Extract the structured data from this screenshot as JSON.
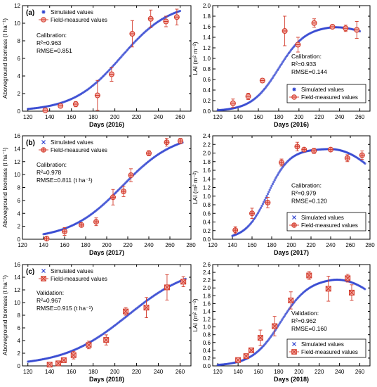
{
  "chart_data": [
    {
      "type": "scatter",
      "panel_label": "(a)",
      "xlabel": "Days (2016)",
      "ylabel": "Aboveground biomass (t ha⁻¹)",
      "xlim": [
        115,
        270
      ],
      "ylim": [
        0,
        12
      ],
      "xticks": [
        120,
        140,
        160,
        180,
        200,
        220,
        240,
        260
      ],
      "yticks": [
        0,
        2,
        4,
        6,
        8,
        10,
        12
      ],
      "legend": {
        "placement": "top-left",
        "entries": [
          "Simulated values",
          "Field-measured values"
        ]
      },
      "marker": "circle",
      "annotation": [
        "Calibration:",
        "R²=0.963",
        "RMSE=0.851"
      ],
      "sim": {
        "x0": 120,
        "x1": 260,
        "kind": "logistic",
        "K": 12.4,
        "r": 0.045,
        "t0": 206,
        "base": 0
      },
      "measured": [
        {
          "x": 136,
          "y": 0.1,
          "err": 0.1
        },
        {
          "x": 150,
          "y": 0.6,
          "err": 0.2
        },
        {
          "x": 164,
          "y": 0.8,
          "err": 0.3
        },
        {
          "x": 184,
          "y": 1.8,
          "err": 1.7
        },
        {
          "x": 197,
          "y": 4.2,
          "err": 0.8
        },
        {
          "x": 216,
          "y": 8.8,
          "err": 1.5
        },
        {
          "x": 233,
          "y": 10.5,
          "err": 1.0
        },
        {
          "x": 247,
          "y": 10.2,
          "err": 0.6
        },
        {
          "x": 257,
          "y": 10.7,
          "err": 0.9
        }
      ]
    },
    {
      "type": "scatter",
      "panel_label": "",
      "xlabel": "Days (2016)",
      "ylabel": "LAI (m² m⁻²)",
      "xlim": [
        115,
        270
      ],
      "ylim": [
        0,
        2.0
      ],
      "xticks": [
        120,
        140,
        160,
        180,
        200,
        220,
        240,
        260
      ],
      "yticks": [
        0.0,
        0.2,
        0.4,
        0.6,
        0.8,
        1.0,
        1.2,
        1.4,
        1.6,
        1.8,
        2.0
      ],
      "legend": {
        "placement": "bottom-right",
        "entries": [
          "Simulated values",
          "Field-measured values"
        ]
      },
      "marker": "circle",
      "annotation": [
        "Calibration:",
        "R²=0.933",
        "RMSE=0.144"
      ],
      "sim": {
        "x0": 120,
        "x1": 260,
        "kind": "lai",
        "K": 1.62,
        "r": 0.075,
        "t0": 180,
        "decline_start": 228,
        "decline_rate": 0.0001
      },
      "measured": [
        {
          "x": 135,
          "y": 0.15,
          "err": 0.08
        },
        {
          "x": 150,
          "y": 0.28,
          "err": 0.06
        },
        {
          "x": 164,
          "y": 0.58,
          "err": 0.04
        },
        {
          "x": 186,
          "y": 1.52,
          "err": 0.28
        },
        {
          "x": 199,
          "y": 1.26,
          "err": 0.14
        },
        {
          "x": 215,
          "y": 1.67,
          "err": 0.08
        },
        {
          "x": 233,
          "y": 1.6,
          "err": 0.04
        },
        {
          "x": 246,
          "y": 1.57,
          "err": 0.06
        },
        {
          "x": 257,
          "y": 1.54,
          "err": 0.16
        }
      ]
    },
    {
      "type": "scatter",
      "panel_label": "(b)",
      "xlabel": "Days (2017)",
      "ylabel": "Aboveground biomass (t ha⁻¹)",
      "xlim": [
        120,
        280
      ],
      "ylim": [
        0,
        16
      ],
      "xticks": [
        120,
        140,
        160,
        180,
        200,
        220,
        240,
        260,
        280
      ],
      "yticks": [
        0,
        2,
        4,
        6,
        8,
        10,
        12,
        14,
        16
      ],
      "legend": {
        "placement": "top-left",
        "entries": [
          "Simulated values",
          "Field-measured values"
        ]
      },
      "marker": "crossed-circle",
      "annotation": [
        "Calibration:",
        "R²=0.978",
        "RMSE=0.811 (t ha⁻¹)"
      ],
      "sim": {
        "x0": 140,
        "x1": 272,
        "kind": "logistic",
        "K": 16.5,
        "r": 0.04,
        "t0": 215,
        "base": 0
      },
      "measured": [
        {
          "x": 143,
          "y": 0.1,
          "err": 0.1
        },
        {
          "x": 160,
          "y": 1.2,
          "err": 0.6
        },
        {
          "x": 176,
          "y": 2.2,
          "err": 0.3
        },
        {
          "x": 190,
          "y": 2.7,
          "err": 0.6
        },
        {
          "x": 206,
          "y": 6.5,
          "err": 1.2
        },
        {
          "x": 216,
          "y": 7.4,
          "err": 0.8
        },
        {
          "x": 223,
          "y": 9.9,
          "err": 1.0
        },
        {
          "x": 240,
          "y": 13.3,
          "err": 0.4
        },
        {
          "x": 257,
          "y": 15.0,
          "err": 0.6
        },
        {
          "x": 270,
          "y": 15.2,
          "err": 0.4
        }
      ]
    },
    {
      "type": "scatter",
      "panel_label": "",
      "xlabel": "Days (2017)",
      "ylabel": "LAI (m² m⁻²)",
      "xlim": [
        120,
        280
      ],
      "ylim": [
        0,
        2.4
      ],
      "xticks": [
        120,
        140,
        160,
        180,
        200,
        220,
        240,
        260,
        280
      ],
      "yticks": [
        0.0,
        0.2,
        0.4,
        0.6,
        0.8,
        1.0,
        1.2,
        1.4,
        1.6,
        1.8,
        2.0,
        2.2,
        2.4
      ],
      "legend": {
        "placement": "bottom-right",
        "entries": [
          "Simulated values",
          "Field-measured values"
        ]
      },
      "marker": "crossed-circle",
      "annotation": [
        "Calibration:",
        "R²=0.979",
        "RMSE=0.120"
      ],
      "sim": {
        "x0": 140,
        "x1": 275,
        "kind": "lai",
        "K": 2.1,
        "r": 0.09,
        "t0": 176,
        "decline_start": 238,
        "decline_rate": 0.00025
      },
      "measured": [
        {
          "x": 143,
          "y": 0.21,
          "err": 0.08
        },
        {
          "x": 160,
          "y": 0.6,
          "err": 0.12
        },
        {
          "x": 176,
          "y": 0.85,
          "err": 0.12
        },
        {
          "x": 190,
          "y": 1.78,
          "err": 0.08
        },
        {
          "x": 206,
          "y": 2.15,
          "err": 0.1
        },
        {
          "x": 213,
          "y": 2.08,
          "err": 0.04
        },
        {
          "x": 223,
          "y": 2.05,
          "err": 0.06
        },
        {
          "x": 240,
          "y": 2.08,
          "err": 0.04
        },
        {
          "x": 257,
          "y": 1.88,
          "err": 0.08
        },
        {
          "x": 272,
          "y": 1.95,
          "err": 0.1
        }
      ]
    },
    {
      "type": "scatter",
      "panel_label": "(c)",
      "xlabel": "Days (2018)",
      "ylabel": "Aboveground biomass (t ha⁻¹)",
      "xlim": [
        115,
        270
      ],
      "ylim": [
        0,
        16
      ],
      "xticks": [
        120,
        140,
        160,
        180,
        200,
        220,
        240,
        260
      ],
      "yticks": [
        0,
        2,
        4,
        6,
        8,
        10,
        12,
        14,
        16
      ],
      "legend": {
        "placement": "top-left",
        "entries": [
          "Simulated values",
          "Field-measured values"
        ]
      },
      "marker": "x-square",
      "annotation": [
        "Validation:",
        "R²=0.967",
        "RMSE=0.915 (t ha⁻¹)"
      ],
      "sim": {
        "x0": 120,
        "x1": 265,
        "kind": "logistic",
        "K": 16.0,
        "r": 0.034,
        "t0": 212,
        "base": 0
      },
      "measured": [
        {
          "x": 140,
          "y": 0.2,
          "err": 0.2
        },
        {
          "x": 148,
          "y": 0.4,
          "err": 0.3
        },
        {
          "x": 153,
          "y": 0.9,
          "err": 0.3
        },
        {
          "x": 162,
          "y": 1.7,
          "err": 0.6
        },
        {
          "x": 176,
          "y": 3.3,
          "err": 0.6
        },
        {
          "x": 192,
          "y": 4.1,
          "err": 0.8
        },
        {
          "x": 210,
          "y": 8.6,
          "err": 0.6
        },
        {
          "x": 229,
          "y": 9.2,
          "err": 1.6
        },
        {
          "x": 248,
          "y": 12.4,
          "err": 2.0
        },
        {
          "x": 263,
          "y": 13.3,
          "err": 0.8
        }
      ]
    },
    {
      "type": "scatter",
      "panel_label": "",
      "xlabel": "Days (2018)",
      "ylabel": "LAI (m² m⁻²)",
      "xlim": [
        115,
        270
      ],
      "ylim": [
        0,
        2.6
      ],
      "xticks": [
        120,
        140,
        160,
        180,
        200,
        220,
        240,
        260
      ],
      "yticks": [
        0.0,
        0.2,
        0.4,
        0.6,
        0.8,
        1.0,
        1.2,
        1.4,
        1.6,
        1.8,
        2.0,
        2.2,
        2.4,
        2.6
      ],
      "legend": {
        "placement": "bottom-right",
        "entries": [
          "Simulated values",
          "Field-measured values"
        ]
      },
      "marker": "x-square",
      "annotation": [
        "Validation:",
        "R²=0.962",
        "RMSE=0.160"
      ],
      "sim": {
        "x0": 120,
        "x1": 265,
        "kind": "lai",
        "K": 2.26,
        "r": 0.072,
        "t0": 182,
        "decline_start": 232,
        "decline_rate": 0.00026
      },
      "measured": [
        {
          "x": 140,
          "y": 0.15,
          "err": 0.04
        },
        {
          "x": 148,
          "y": 0.25,
          "err": 0.05
        },
        {
          "x": 153,
          "y": 0.4,
          "err": 0.06
        },
        {
          "x": 162,
          "y": 0.72,
          "err": 0.2
        },
        {
          "x": 176,
          "y": 1.02,
          "err": 0.25
        },
        {
          "x": 192,
          "y": 1.68,
          "err": 0.22
        },
        {
          "x": 210,
          "y": 2.32,
          "err": 0.1
        },
        {
          "x": 229,
          "y": 1.98,
          "err": 0.32
        },
        {
          "x": 248,
          "y": 2.25,
          "err": 0.1
        },
        {
          "x": 252,
          "y": 1.88,
          "err": 0.2
        }
      ]
    }
  ]
}
